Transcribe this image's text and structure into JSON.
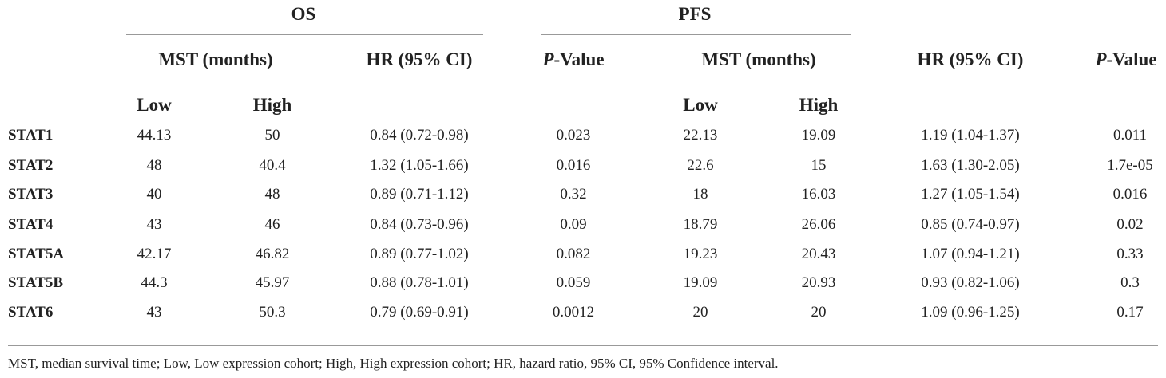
{
  "header": {
    "os": "OS",
    "pfs": "PFS",
    "columns": [
      "MST (months)",
      "HR (95% CI)",
      "P-Value",
      "MST (months)",
      "HR (95% CI)",
      "P-Value"
    ],
    "subcolumns": [
      "Low",
      "High",
      "Low",
      "High"
    ]
  },
  "table": {
    "rows": [
      [
        "STAT1",
        "44.13",
        "50",
        "0.84 (0.72-0.98)",
        "0.023",
        "22.13",
        "19.09",
        "1.19 (1.04-1.37)",
        "0.011"
      ],
      [
        "STAT2",
        "48",
        "40.4",
        "1.32 (1.05-1.66)",
        "0.016",
        "22.6",
        "15",
        "1.63 (1.30-2.05)",
        "1.7e-05"
      ],
      [
        "STAT3",
        "40",
        "48",
        "0.89 (0.71-1.12)",
        "0.32",
        "18",
        "16.03",
        "1.27 (1.05-1.54)",
        "0.016"
      ],
      [
        "STAT4",
        "43",
        "46",
        "0.84 (0.73-0.96)",
        "0.09",
        "18.79",
        "26.06",
        "0.85 (0.74-0.97)",
        "0.02"
      ],
      [
        "STAT5A",
        "42.17",
        "46.82",
        "0.89 (0.77-1.02)",
        "0.082",
        "19.23",
        "20.43",
        "1.07 (0.94-1.21)",
        "0.33"
      ],
      [
        "STAT5B",
        "44.3",
        "45.97",
        "0.88 (0.78-1.01)",
        "0.059",
        "19.09",
        "20.93",
        "0.93 (0.82-1.06)",
        "0.3"
      ],
      [
        "STAT6",
        "43",
        "50.3",
        "0.79 (0.69-0.91)",
        "0.0012",
        "20",
        "20",
        "1.09 (0.96-1.25)",
        "0.17"
      ]
    ]
  },
  "footnote": "MST, median survival time; Low, Low expression cohort; High, High expression cohort; HR, hazard ratio, 95% CI, 95% Confidence interval."
}
